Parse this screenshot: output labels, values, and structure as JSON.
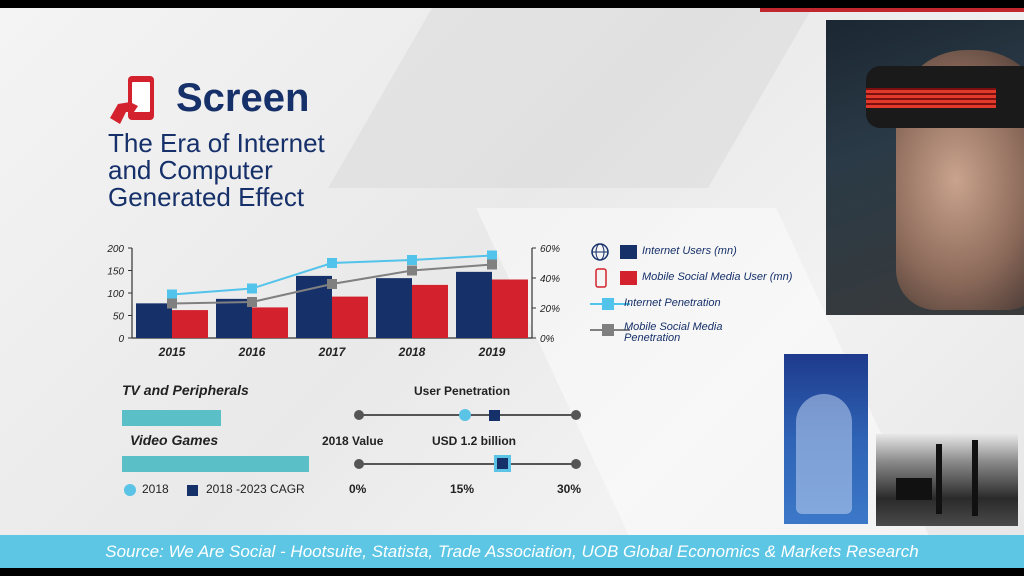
{
  "header": {
    "brand": "Screen",
    "subtitle_lines": [
      "The Era of Internet",
      "and Computer",
      "Generated Effect"
    ]
  },
  "chart_data": {
    "type": "bar",
    "categories": [
      "2015",
      "2016",
      "2017",
      "2018",
      "2019"
    ],
    "y_left_ticks": [
      "200",
      "150",
      "100",
      "50",
      "0"
    ],
    "y_right_ticks": [
      "60%",
      "40%",
      "20%",
      "0%"
    ],
    "ylim_left": [
      0,
      200
    ],
    "ylim_right": [
      0,
      60
    ],
    "series": [
      {
        "name": "Internet Users (mn)",
        "kind": "bar",
        "axis": "left",
        "color": "#16306a",
        "values": [
          77,
          87,
          138,
          133,
          147
        ]
      },
      {
        "name": "Mobile Social Media User (mn)",
        "kind": "bar",
        "axis": "left",
        "color": "#d3212d",
        "values": [
          62,
          68,
          92,
          118,
          130
        ]
      },
      {
        "name": "Internet Penetration",
        "kind": "line",
        "axis": "right",
        "color": "#52c3ea",
        "values": [
          29,
          33,
          50,
          52,
          55
        ]
      },
      {
        "name": "Mobile Social Media Penetration",
        "kind": "line",
        "axis": "right",
        "color": "#808080",
        "values": [
          23,
          24,
          36,
          45,
          49
        ]
      }
    ],
    "legend_position": "right",
    "grid": false
  },
  "legend": {
    "items": [
      {
        "label": "Internet Users (mn)"
      },
      {
        "label": "Mobile Social Media User (mn)"
      },
      {
        "label": "Internet Penetration"
      },
      {
        "label_lines": [
          "Mobile Social Media",
          "Penetration"
        ]
      }
    ]
  },
  "segments": {
    "tv_label": "TV and Peripherals",
    "tv_value_pct": 0.45,
    "games_label": "Video Games",
    "games_value_pct": 0.85,
    "legend_2018": "2018",
    "legend_cagr": "2018 -2023 CAGR"
  },
  "sliders": {
    "penetration_title": "User Penetration",
    "penetration_2018_pct": 0.49,
    "penetration_cagr_pct": 0.62,
    "value_label": "2018 Value",
    "value_amount": "USD 1.2 billion",
    "value_pct": 0.66,
    "ticks": [
      "0%",
      "15%",
      "30%"
    ]
  },
  "footer": {
    "source": "Source: We Are Social - Hootsuite, Statista, Trade Association, UOB Global Economics & Markets Research"
  },
  "colors": {
    "navy": "#16306a",
    "red": "#d3212d",
    "cyan": "#52c3ea",
    "teal_bar": "#5bbfc8",
    "footer": "#5cc6e4"
  }
}
